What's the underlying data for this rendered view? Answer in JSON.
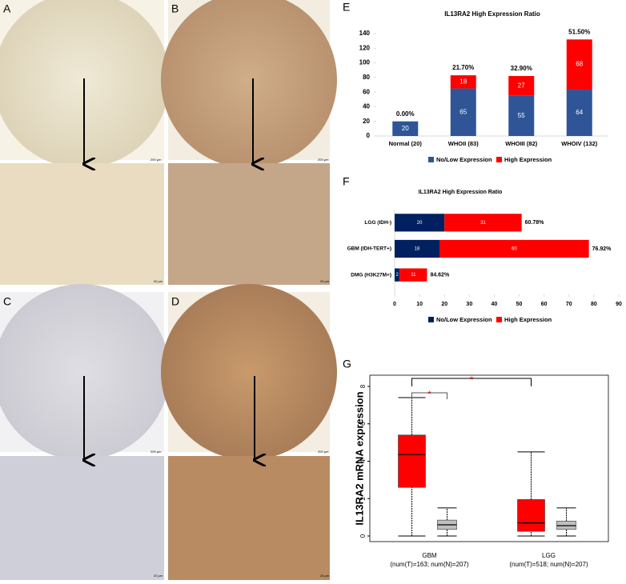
{
  "panels": {
    "labels": [
      "A",
      "B",
      "C",
      "D"
    ],
    "scale_bars": [
      "200 μm",
      "20 μm"
    ]
  },
  "chart_data": [
    {
      "type": "stacked-bar",
      "panel": "E",
      "title": "IL13RA2 High Expression Ratio",
      "categories": [
        "Normal (20)",
        "WHOII (83)",
        "WHOIII (82)",
        "WHOIV (132)"
      ],
      "series": [
        {
          "name": "No/Low Expression",
          "color": "#2f5597",
          "values": [
            20,
            65,
            55,
            64
          ]
        },
        {
          "name": "High Expression",
          "color": "#ff0000",
          "values": [
            null,
            18,
            27,
            68
          ]
        }
      ],
      "annotations": [
        "0.00%",
        "21.70%",
        "32.90%",
        "51.50%"
      ],
      "ylim": [
        0,
        140
      ],
      "yticks": [
        0,
        20,
        40,
        60,
        80,
        100,
        120,
        140
      ]
    },
    {
      "type": "stacked-barh",
      "panel": "F",
      "title": "IL13RA2 High Expression Ratio",
      "categories": [
        "LGG (IDH-)",
        "GBM (IDH-TERT+)",
        "DMG (H3K27M+)"
      ],
      "series": [
        {
          "name": "No/Low Expression",
          "color": "#002060",
          "values": [
            20,
            18,
            2
          ]
        },
        {
          "name": "High Expression",
          "color": "#ff0000",
          "values": [
            31,
            60,
            11
          ]
        }
      ],
      "annotations": [
        "60.78%",
        "76.92%",
        "84.62%"
      ],
      "xlim": [
        0,
        90
      ],
      "xticks": [
        0,
        10,
        20,
        30,
        40,
        50,
        60,
        70,
        80,
        90
      ]
    },
    {
      "type": "box",
      "panel": "G",
      "ylabel": "IL13RA2 mRNA expression",
      "categories": [
        "GBM",
        "LGG"
      ],
      "category_notes": [
        "(num(T)=163; num(N)=207)",
        "(num(T)=518; num(N)=207)"
      ],
      "series": [
        {
          "color": "#ff0000",
          "values": [
            [
              0,
              2.6,
              4.35,
              5.4,
              7.4
            ],
            [
              0,
              0.25,
              0.7,
              1.95,
              4.5
            ]
          ]
        },
        {
          "color": "#bfbfbf",
          "values": [
            [
              0,
              0.35,
              0.6,
              0.85,
              1.5
            ],
            [
              0,
              0.35,
              0.55,
              0.8,
              1.5
            ]
          ]
        }
      ],
      "annotations": [
        "*",
        "*"
      ],
      "ylim": [
        -0.3,
        8.6
      ],
      "yticks": [
        0,
        2,
        4,
        6,
        8
      ]
    }
  ]
}
